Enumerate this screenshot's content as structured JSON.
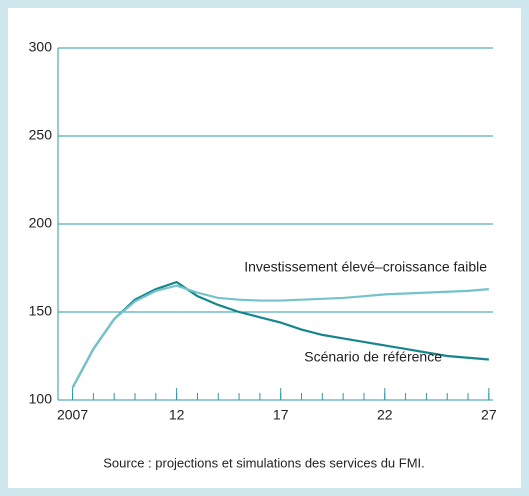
{
  "chart_data": {
    "type": "line",
    "x": [
      2007,
      2008,
      2009,
      2010,
      2011,
      2012,
      2013,
      2014,
      2015,
      2016,
      2017,
      2018,
      2019,
      2020,
      2021,
      2022,
      2023,
      2024,
      2025,
      2026,
      2027
    ],
    "series": [
      {
        "name": "Scénario de référence",
        "color": "#17868c",
        "values": [
          107,
          129,
          146,
          157,
          163,
          167,
          159,
          154,
          150,
          147,
          144,
          140,
          137,
          135,
          133,
          131,
          129,
          127,
          125,
          124,
          123
        ]
      },
      {
        "name": "Investissement élevé–croissance faible",
        "color": "#74c3cb",
        "values": [
          107,
          129,
          146,
          156,
          162,
          165,
          161,
          158,
          157,
          156.5,
          156.5,
          157,
          157.5,
          158,
          159,
          160,
          160.5,
          161,
          161.5,
          162,
          163
        ]
      }
    ],
    "xlim": [
      2006.3,
      2027.2
    ],
    "xticks": [
      2007,
      {
        "value": 2012,
        "label": "12"
      },
      {
        "value": 2017,
        "label": "17"
      },
      {
        "value": 2022,
        "label": "22"
      },
      {
        "value": 2027,
        "label": "27"
      }
    ],
    "minor_xticks": [
      2007,
      2008,
      2009,
      2010,
      2011,
      2012,
      2013,
      2014,
      2015,
      2016,
      2017,
      2018,
      2019,
      2020,
      2021,
      2022,
      2023,
      2024,
      2025,
      2026,
      2027
    ],
    "ylim": [
      100,
      300
    ],
    "yticks": [
      100,
      150,
      200,
      250,
      300
    ],
    "grid": true,
    "source": "Source : projections et simulations des services du FMI."
  }
}
